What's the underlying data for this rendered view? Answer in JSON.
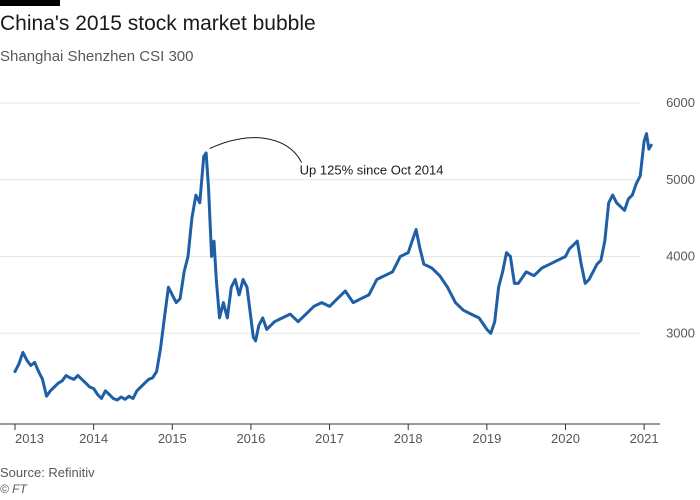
{
  "title": "China's 2015 stock market bubble",
  "subtitle": "Shanghai Shenzhen CSI 300",
  "source": "Source: Refinitiv",
  "credit": "© FT",
  "colors": {
    "line": "#1f5fa6",
    "grid": "#e6e6e6",
    "axis": "#55585e"
  },
  "chart_data": {
    "type": "line",
    "title": "China's 2015 stock market bubble",
    "subtitle": "Shanghai Shenzhen CSI 300",
    "xlabel": "",
    "ylabel": "",
    "x_ticks": [
      "2013",
      "2014",
      "2015",
      "2016",
      "2017",
      "2018",
      "2019",
      "2020",
      "2021"
    ],
    "y_ticks": [
      "3000",
      "4000",
      "5000",
      "6000"
    ],
    "xlim": [
      2013.0,
      2021.1
    ],
    "ylim": [
      2000,
      6000
    ],
    "grid": "horizontal",
    "y_axis_position": "right",
    "annotation": {
      "text": "Up 125% since Oct 2014",
      "x": 2015.45,
      "y": 5380
    },
    "series": [
      {
        "x": [
          2013.0,
          2013.05,
          2013.1,
          2013.15,
          2013.2,
          2013.25,
          2013.3,
          2013.35,
          2013.4,
          2013.45,
          2013.5,
          2013.55,
          2013.6,
          2013.65,
          2013.7,
          2013.75,
          2013.8,
          2013.85,
          2013.9,
          2013.95,
          2014.0,
          2014.05,
          2014.1,
          2014.15,
          2014.2,
          2014.25,
          2014.3,
          2014.35,
          2014.4,
          2014.45,
          2014.5,
          2014.55,
          2014.6,
          2014.65,
          2014.7,
          2014.75,
          2014.8,
          2014.85,
          2014.9,
          2014.95,
          2015.0,
          2015.05,
          2015.1,
          2015.15,
          2015.2,
          2015.25,
          2015.3,
          2015.35,
          2015.4,
          2015.43,
          2015.46,
          2015.5,
          2015.53,
          2015.56,
          2015.6,
          2015.65,
          2015.7,
          2015.75,
          2015.8,
          2015.85,
          2015.9,
          2015.95,
          2016.0,
          2016.03,
          2016.06,
          2016.1,
          2016.15,
          2016.2,
          2016.3,
          2016.4,
          2016.5,
          2016.6,
          2016.7,
          2016.8,
          2016.9,
          2017.0,
          2017.1,
          2017.2,
          2017.3,
          2017.4,
          2017.5,
          2017.6,
          2017.7,
          2017.8,
          2017.9,
          2018.0,
          2018.05,
          2018.1,
          2018.15,
          2018.2,
          2018.3,
          2018.4,
          2018.5,
          2018.6,
          2018.7,
          2018.8,
          2018.9,
          2019.0,
          2019.05,
          2019.1,
          2019.15,
          2019.2,
          2019.25,
          2019.3,
          2019.35,
          2019.4,
          2019.5,
          2019.6,
          2019.7,
          2019.8,
          2019.9,
          2020.0,
          2020.05,
          2020.1,
          2020.15,
          2020.2,
          2020.25,
          2020.3,
          2020.35,
          2020.4,
          2020.45,
          2020.5,
          2020.55,
          2020.6,
          2020.65,
          2020.7,
          2020.75,
          2020.8,
          2020.85,
          2020.9,
          2020.95,
          2021.0,
          2021.03,
          2021.06,
          2021.09
        ],
        "values": [
          2500,
          2600,
          2750,
          2650,
          2580,
          2620,
          2500,
          2400,
          2180,
          2250,
          2300,
          2350,
          2380,
          2450,
          2420,
          2400,
          2450,
          2400,
          2350,
          2300,
          2280,
          2200,
          2150,
          2250,
          2200,
          2150,
          2130,
          2170,
          2140,
          2180,
          2150,
          2250,
          2300,
          2350,
          2400,
          2420,
          2500,
          2800,
          3200,
          3600,
          3500,
          3400,
          3450,
          3800,
          4000,
          4500,
          4800,
          4700,
          5300,
          5350,
          4900,
          4000,
          4200,
          3700,
          3200,
          3400,
          3200,
          3600,
          3700,
          3500,
          3700,
          3600,
          3200,
          2950,
          2900,
          3100,
          3200,
          3050,
          3150,
          3200,
          3250,
          3150,
          3250,
          3350,
          3400,
          3350,
          3450,
          3550,
          3400,
          3450,
          3500,
          3700,
          3750,
          3800,
          4000,
          4050,
          4200,
          4350,
          4100,
          3900,
          3850,
          3750,
          3600,
          3400,
          3300,
          3250,
          3200,
          3050,
          3000,
          3150,
          3600,
          3800,
          4050,
          4000,
          3650,
          3650,
          3800,
          3750,
          3850,
          3900,
          3950,
          4000,
          4100,
          4150,
          4200,
          3900,
          3650,
          3700,
          3800,
          3900,
          3950,
          4200,
          4700,
          4800,
          4700,
          4650,
          4600,
          4750,
          4800,
          4950,
          5050,
          5500,
          5600,
          5400,
          5450
        ]
      }
    ]
  }
}
